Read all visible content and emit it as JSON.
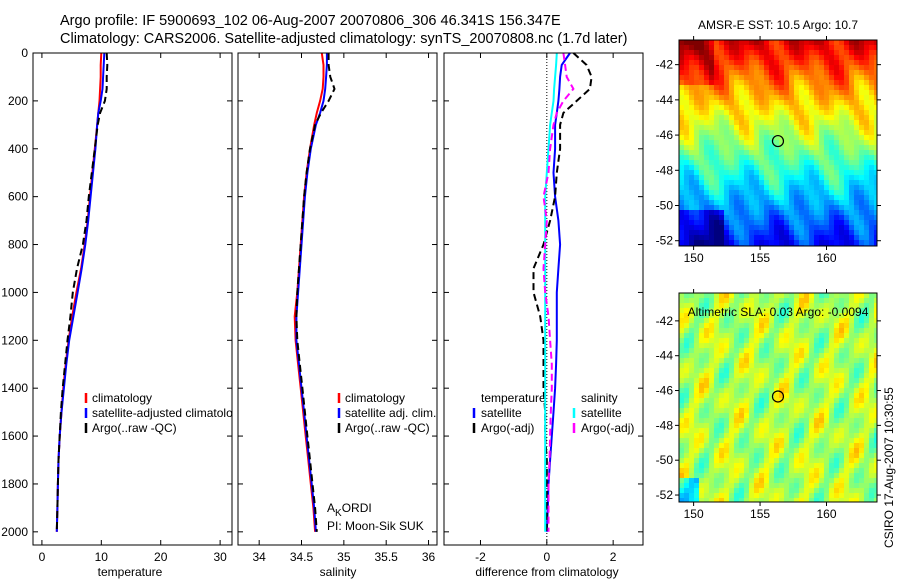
{
  "title": {
    "line1": "Argo profile: IF 5900693_102 06-Aug-2007 20070806_306 46.341S 156.347E",
    "line2": "Climatology: CARS2006. Satellite-adjusted climatology: synTS_20070808.nc (1.7d later)"
  },
  "side_stamp": "CSIRO 17-Aug-2007 10:30:55",
  "colors": {
    "clim": "#ff0000",
    "sat": "#0000ff",
    "argo": "#000000",
    "sal_sat": "#00ffff",
    "sal_argo": "#ff00ff"
  },
  "chart_data": [
    {
      "type": "line",
      "id": "temperature",
      "xlabel": "temperature",
      "ylabel": "",
      "xlim": [
        -1.5,
        32
      ],
      "ylim": [
        2055,
        0
      ],
      "xticks": [
        "0",
        "10",
        "20",
        "30"
      ],
      "yticks": [
        "0",
        "200",
        "400",
        "600",
        "800",
        "1000",
        "1200",
        "1400",
        "1600",
        "1800",
        "2000"
      ],
      "depth": [
        0,
        50,
        100,
        150,
        200,
        250,
        300,
        400,
        500,
        600,
        700,
        800,
        900,
        1000,
        1100,
        1200,
        1300,
        1400,
        1500,
        1600,
        1700,
        1800,
        1900,
        2000
      ],
      "series": [
        {
          "name": "climatology",
          "style": "solid",
          "color": "#ff0000",
          "values": [
            10.0,
            9.9,
            9.9,
            9.8,
            9.7,
            9.5,
            9.3,
            8.9,
            8.5,
            8.1,
            7.7,
            7.2,
            6.6,
            5.8,
            5.1,
            4.5,
            4.0,
            3.6,
            3.3,
            3.0,
            2.8,
            2.7,
            2.6,
            2.5
          ]
        },
        {
          "name": "satellite-adjusted climatology",
          "style": "solid",
          "color": "#0000ff",
          "values": [
            10.5,
            10.4,
            10.3,
            10.2,
            9.9,
            9.5,
            9.3,
            9.0,
            8.6,
            8.2,
            7.8,
            7.3,
            6.7,
            6.0,
            5.3,
            4.6,
            4.1,
            3.7,
            3.3,
            3.0,
            2.8,
            2.7,
            2.6,
            2.5
          ]
        },
        {
          "name": "Argo(..raw -QC)",
          "style": "dashed",
          "color": "#000000",
          "values": [
            10.9,
            11.0,
            10.9,
            10.9,
            10.6,
            9.8,
            9.4,
            8.9,
            8.4,
            7.9,
            7.5,
            6.9,
            5.9,
            5.2,
            4.8,
            4.3,
            3.9,
            3.5,
            3.2,
            3.0,
            2.8,
            2.7,
            2.6,
            2.5
          ]
        }
      ]
    },
    {
      "type": "line",
      "id": "salinity",
      "xlabel": "salinity",
      "xlim": [
        33.75,
        36.1
      ],
      "ylim": [
        2055,
        0
      ],
      "xticks": [
        "34",
        "34.5",
        "35",
        "35.5",
        "36"
      ],
      "depth": [
        0,
        50,
        100,
        150,
        200,
        250,
        300,
        400,
        500,
        600,
        700,
        800,
        900,
        1000,
        1100,
        1200,
        1300,
        1400,
        1500,
        1600,
        1700,
        1800,
        1900,
        2000
      ],
      "series": [
        {
          "name": "climatology",
          "style": "solid",
          "color": "#ff0000",
          "values": [
            34.74,
            34.76,
            34.76,
            34.75,
            34.72,
            34.68,
            34.65,
            34.6,
            34.56,
            34.53,
            34.51,
            34.49,
            34.47,
            34.45,
            34.42,
            34.43,
            34.46,
            34.49,
            34.52,
            34.55,
            34.58,
            34.61,
            34.64,
            34.66
          ]
        },
        {
          "name": "satellite adj. clim.",
          "style": "solid",
          "color": "#0000ff",
          "values": [
            34.8,
            34.8,
            34.79,
            34.78,
            34.76,
            34.72,
            34.67,
            34.61,
            34.57,
            34.54,
            34.52,
            34.5,
            34.48,
            34.46,
            34.44,
            34.44,
            34.47,
            34.5,
            34.53,
            34.56,
            34.59,
            34.62,
            34.65,
            34.67
          ]
        },
        {
          "name": "Argo(..raw -QC)",
          "style": "dashed",
          "color": "#000000",
          "values": [
            34.82,
            34.82,
            34.84,
            34.89,
            34.82,
            34.73,
            34.66,
            34.6,
            34.56,
            34.53,
            34.51,
            34.49,
            34.47,
            34.45,
            34.44,
            34.45,
            34.48,
            34.51,
            34.54,
            34.57,
            34.6,
            34.63,
            34.66,
            34.68
          ]
        }
      ],
      "annotations": [
        "A",
        "K",
        "ORDI",
        "PI: Moon-Sik SUK"
      ]
    },
    {
      "type": "line",
      "id": "difference",
      "xlabel": "difference from climatology",
      "xlim": [
        -3.1,
        2.9
      ],
      "ylim": [
        2055,
        0
      ],
      "xticks": [
        "-2",
        "0",
        "2"
      ],
      "depth": [
        0,
        50,
        100,
        150,
        200,
        250,
        300,
        400,
        500,
        600,
        700,
        800,
        900,
        1000,
        1100,
        1200,
        1300,
        1400,
        1500,
        1600,
        1700,
        1800,
        1900,
        2000
      ],
      "legend_groups": [
        "temperature",
        "salinity"
      ],
      "series": [
        {
          "name": "satellite",
          "group": "temperature",
          "style": "solid",
          "color": "#0000ff",
          "values": [
            0.7,
            0.45,
            0.4,
            0.38,
            0.35,
            0.3,
            0.25,
            0.25,
            0.2,
            0.25,
            0.35,
            0.4,
            0.35,
            0.3,
            0.3,
            0.3,
            0.28,
            0.25,
            0.2,
            0.15,
            0.1,
            0.05,
            0.03,
            0.0
          ]
        },
        {
          "name": "Argo(-adj)",
          "group": "temperature",
          "style": "dashed",
          "color": "#000000",
          "values": [
            0.8,
            1.2,
            1.35,
            1.3,
            0.9,
            0.5,
            0.4,
            0.4,
            0.3,
            0.25,
            0.1,
            -0.1,
            -0.4,
            -0.4,
            -0.2,
            -0.1,
            -0.1,
            -0.1,
            -0.05,
            -0.05,
            0.0,
            0.0,
            0.0,
            0.0
          ]
        },
        {
          "name": "satellite",
          "group": "salinity",
          "style": "solid",
          "color": "#00ffff",
          "values": [
            0.3,
            0.28,
            0.25,
            0.22,
            0.2,
            0.15,
            0.1,
            0.05,
            0.0,
            -0.05,
            -0.05,
            -0.05,
            -0.05,
            -0.05,
            -0.05,
            -0.05,
            -0.05,
            -0.05,
            -0.05,
            -0.05,
            -0.05,
            -0.05,
            -0.05,
            -0.05
          ]
        },
        {
          "name": "Argo(-adj)",
          "group": "salinity",
          "style": "dashed",
          "color": "#ff00ff",
          "values": [
            0.5,
            0.55,
            0.6,
            0.8,
            0.5,
            0.3,
            0.2,
            0.1,
            0.05,
            -0.1,
            0.0,
            -0.05,
            -0.1,
            -0.05,
            0.05,
            0.1,
            0.15,
            0.15,
            0.12,
            0.1,
            0.08,
            0.05,
            0.05,
            0.05
          ]
        }
      ]
    },
    {
      "type": "heatmap",
      "id": "sst-map",
      "title": "AMSR-E SST: 10.5 Argo: 10.7",
      "xlim": [
        148.9,
        163.8
      ],
      "ylim": [
        -52.3,
        -40.6
      ],
      "xticks": [
        "150",
        "155",
        "160"
      ],
      "yticks": [
        "-42",
        "-44",
        "-46",
        "-48",
        "-50",
        "-52"
      ],
      "marker": {
        "lon": 156.347,
        "lat": -46.341
      }
    },
    {
      "type": "heatmap",
      "id": "sla-map",
      "title": "Altimetric SLA: 0.03 Argo: -0.0094",
      "xlim": [
        148.9,
        163.8
      ],
      "ylim": [
        -52.4,
        -40.4
      ],
      "xticks": [
        "150",
        "155",
        "160"
      ],
      "yticks": [
        "-42",
        "-44",
        "-46",
        "-48",
        "-50",
        "-52"
      ],
      "marker": {
        "lon": 156.347,
        "lat": -46.341
      }
    }
  ]
}
